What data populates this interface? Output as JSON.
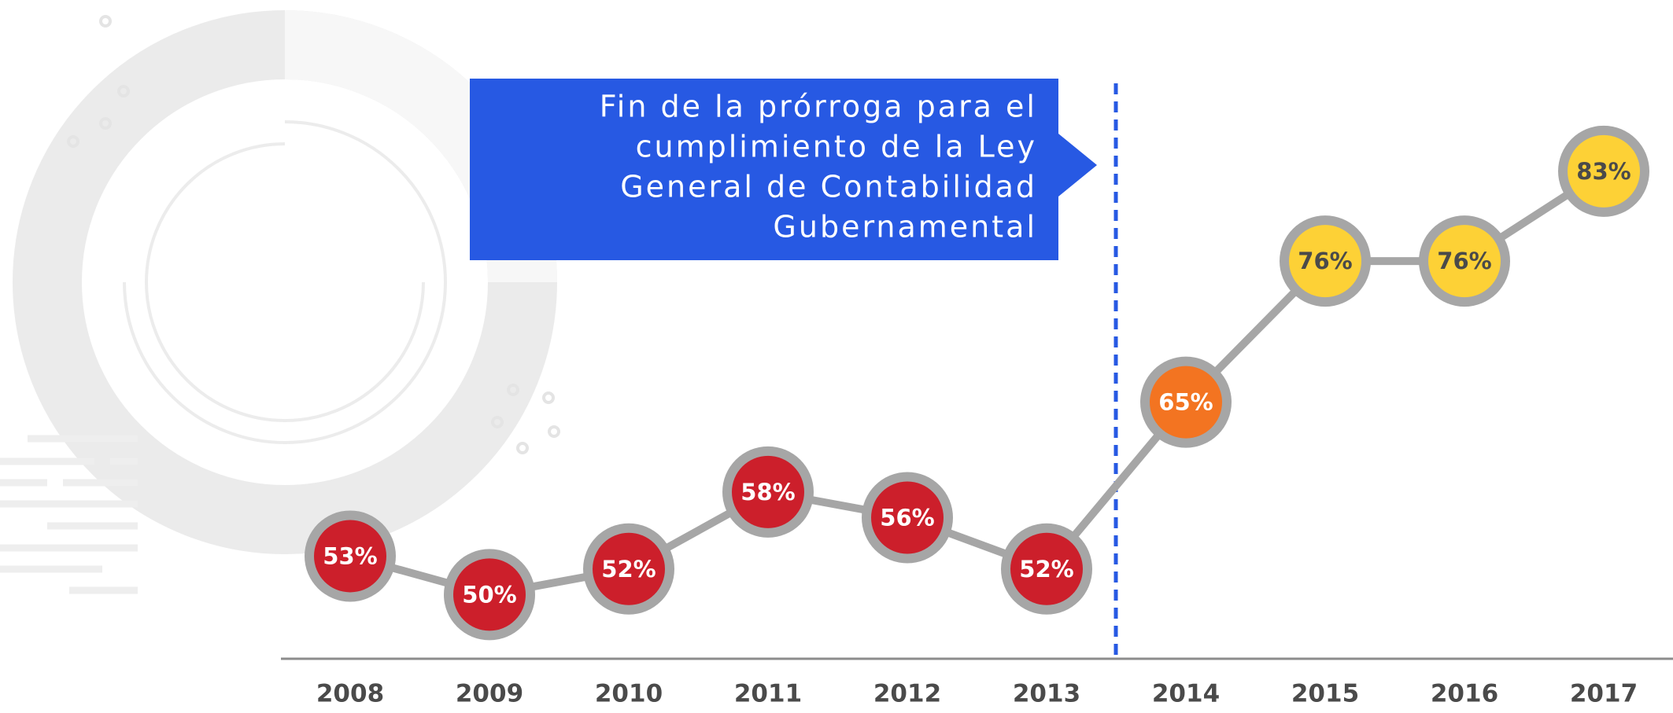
{
  "chart_data": {
    "type": "line",
    "annotation_lines": [
      "Fin de la prórroga para el",
      "cumplimiento de la Ley",
      "General de Contabilidad",
      "Gubernamental"
    ],
    "categories": [
      "2008",
      "2009",
      "2010",
      "2011",
      "2012",
      "2013",
      "2014",
      "2015",
      "2016",
      "2017"
    ],
    "values": [
      53,
      50,
      52,
      58,
      56,
      52,
      65,
      76,
      76,
      83
    ],
    "value_labels": [
      "53%",
      "50%",
      "52%",
      "58%",
      "56%",
      "52%",
      "65%",
      "76%",
      "76%",
      "83%"
    ],
    "colors": [
      "#cc1f2b",
      "#cc1f2b",
      "#cc1f2b",
      "#cc1f2b",
      "#cc1f2b",
      "#cc1f2b",
      "#f37421",
      "#fdd136",
      "#fdd136",
      "#fdd136"
    ],
    "value_label_colors": [
      "#ffffff",
      "#ffffff",
      "#ffffff",
      "#ffffff",
      "#ffffff",
      "#ffffff",
      "#ffffff",
      "#4a4a4a",
      "#4a4a4a",
      "#4a4a4a"
    ],
    "line_color": "#a6a6a6",
    "ylim": [
      45,
      95
    ]
  }
}
